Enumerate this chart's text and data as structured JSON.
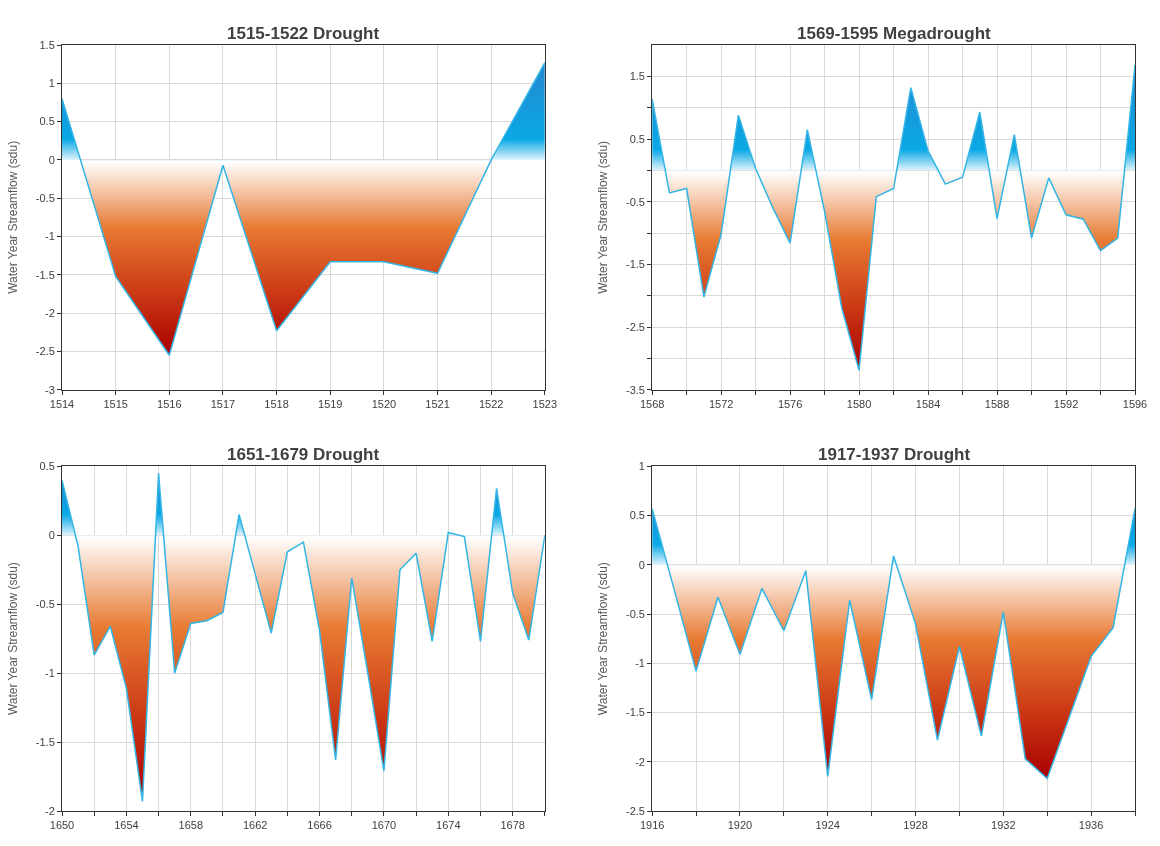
{
  "chart_data": [
    {
      "type": "area",
      "title": "1515-1522 Drought",
      "ylabel": "Water Year Streamflow (sdu)",
      "grid": true,
      "line_style": "solid",
      "x": [
        1514,
        1515,
        1516,
        1517,
        1518,
        1519,
        1520,
        1521,
        1522,
        1523
      ],
      "series": [
        {
          "color": "#33b5e5",
          "values": [
            0.8,
            -1.52,
            -2.55,
            -0.07,
            -2.23,
            -1.33,
            -1.33,
            -1.48,
            0,
            1.27
          ]
        }
      ],
      "xlim": [
        1514,
        1523
      ],
      "xticks": [
        1514,
        1515,
        1516,
        1517,
        1518,
        1519,
        1520,
        1521,
        1522,
        1523
      ],
      "ylim": [
        -3,
        1.5
      ],
      "yticks": [
        -3,
        -2.5,
        -2,
        -1.5,
        -1,
        -0.5,
        0,
        0.5,
        1,
        1.5
      ]
    },
    {
      "type": "area",
      "title": "1569-1595 Megadrought",
      "ylabel": "Water Year Streamflow (sdu)",
      "grid": true,
      "line_style": "solid",
      "x": [
        1568,
        1569,
        1570,
        1571,
        1572,
        1573,
        1574,
        1575,
        1576,
        1577,
        1578,
        1579,
        1580,
        1581,
        1582,
        1583,
        1584,
        1585,
        1586,
        1587,
        1588,
        1589,
        1590,
        1591,
        1592,
        1593,
        1594,
        1595,
        1596
      ],
      "series": [
        {
          "color": "#33b5e5",
          "values": [
            1.14,
            -0.36,
            -0.29,
            -2.02,
            -1.02,
            0.88,
            0.03,
            -0.6,
            -1.16,
            0.65,
            -0.66,
            -2.2,
            -3.19,
            -0.42,
            -0.29,
            1.32,
            0.31,
            -0.22,
            -0.11,
            0.93,
            -0.77,
            0.57,
            -1.08,
            -0.12,
            -0.71,
            -0.78,
            -1.28,
            -1.08,
            1.68
          ]
        }
      ],
      "xlim": [
        1568,
        1596
      ],
      "xticks": [
        1568,
        {
          "value": 1570,
          "label": null
        },
        1572,
        {
          "value": 1574,
          "label": null
        },
        1576,
        {
          "value": 1578,
          "label": null
        },
        1580,
        {
          "value": 1582,
          "label": null
        },
        1584,
        {
          "value": 1586,
          "label": null
        },
        1588,
        {
          "value": 1590,
          "label": null
        },
        1592,
        {
          "value": 1594,
          "label": null
        },
        1596
      ],
      "ylim": [
        -3.5,
        2
      ],
      "yticks": [
        -3.5,
        {
          "value": -3,
          "label": null
        },
        -2.5,
        {
          "value": -2,
          "label": null
        },
        -1.5,
        {
          "value": -1,
          "label": null
        },
        -0.5,
        {
          "value": 0,
          "label": null
        },
        0.5,
        {
          "value": 1,
          "label": null
        },
        1.5
      ]
    },
    {
      "type": "area",
      "title": "1651-1679 Drought",
      "ylabel": "Water Year Streamflow (sdu)",
      "grid": true,
      "line_style": "solid",
      "x": [
        1650,
        1651,
        1652,
        1653,
        1654,
        1655,
        1656,
        1657,
        1658,
        1659,
        1660,
        1661,
        1662,
        1663,
        1664,
        1665,
        1666,
        1667,
        1668,
        1669,
        1670,
        1671,
        1672,
        1673,
        1674,
        1675,
        1676,
        1677,
        1678,
        1679,
        1680
      ],
      "series": [
        {
          "color": "#33b5e5",
          "values": [
            0.4,
            -0.08,
            -0.87,
            -0.66,
            -1.11,
            -1.93,
            0.45,
            -1.0,
            -0.64,
            -0.62,
            -0.56,
            0.15,
            -0.28,
            -0.71,
            -0.12,
            -0.05,
            -0.69,
            -1.63,
            -0.31,
            -1.0,
            -1.71,
            -0.25,
            -0.13,
            -0.77,
            0.02,
            -0.01,
            -0.77,
            0.34,
            -0.42,
            -0.76,
            0
          ]
        }
      ],
      "xlim": [
        1650,
        1680
      ],
      "xticks": [
        1650,
        {
          "value": 1652,
          "label": null
        },
        1654,
        {
          "value": 1656,
          "label": null
        },
        1658,
        {
          "value": 1660,
          "label": null
        },
        1662,
        {
          "value": 1664,
          "label": null
        },
        1666,
        {
          "value": 1668,
          "label": null
        },
        1670,
        {
          "value": 1672,
          "label": null
        },
        1674,
        {
          "value": 1676,
          "label": null
        },
        1678,
        {
          "value": 1680,
          "label": null
        }
      ],
      "ylim": [
        -2,
        0.5
      ],
      "yticks": [
        -2,
        -1.5,
        -1,
        -0.5,
        0,
        0.5
      ]
    },
    {
      "type": "area",
      "title": "1917-1937 Drought",
      "ylabel": "Water Year Streamflow (sdu)",
      "grid": true,
      "line_style": "solid",
      "x": [
        1916,
        1917,
        1918,
        1919,
        1920,
        1921,
        1922,
        1923,
        1924,
        1925,
        1926,
        1927,
        1928,
        1929,
        1930,
        1931,
        1932,
        1933,
        1934,
        1935,
        1936,
        1937,
        1938
      ],
      "series": [
        {
          "color": "#33b5e5",
          "values": [
            0.57,
            -0.25,
            -1.08,
            -0.33,
            -0.91,
            -0.24,
            -0.67,
            -0.06,
            -2.15,
            -0.36,
            -1.37,
            0.09,
            -0.6,
            -1.78,
            -0.83,
            -1.74,
            -0.48,
            -1.97,
            -2.17,
            -1.55,
            -0.93,
            -0.64,
            0.57
          ]
        }
      ],
      "xlim": [
        1916,
        1938
      ],
      "xticks": [
        1916,
        {
          "value": 1918,
          "label": null
        },
        1920,
        {
          "value": 1922,
          "label": null
        },
        1924,
        {
          "value": 1926,
          "label": null
        },
        1928,
        {
          "value": 1930,
          "label": null
        },
        1932,
        {
          "value": 1934,
          "label": null
        },
        1936,
        {
          "value": 1938,
          "label": null
        }
      ],
      "ylim": [
        -2.5,
        1
      ],
      "yticks": [
        -2.5,
        -2,
        -1.5,
        -1,
        -0.5,
        0,
        0.5,
        1
      ]
    }
  ]
}
